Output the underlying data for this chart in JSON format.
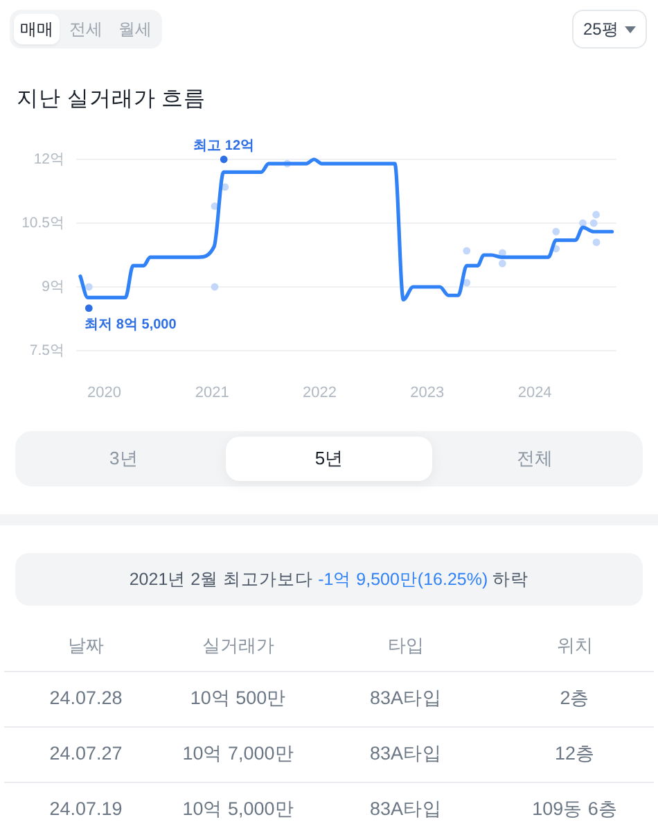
{
  "chart_data": {
    "type": "line",
    "title": "지난 실거래가 흐름",
    "xlim": [
      "2019-09-28",
      "2024-10-04"
    ],
    "xticks": [
      "2020",
      "2021",
      "2022",
      "2023",
      "2024"
    ],
    "ylim": [
      7.5,
      12
    ],
    "yticks": [
      {
        "value": 7.5,
        "label": "7.5억"
      },
      {
        "value": 9,
        "label": "9억"
      },
      {
        "value": 10.5,
        "label": "10.5억"
      },
      {
        "value": 12,
        "label": "12억"
      }
    ],
    "grid": "y",
    "marker": "circle",
    "series": [
      {
        "type": "scatter",
        "color": "#c3d7fb",
        "x": [
          "2019-11-10",
          "2021-01-10",
          "2021-01-10",
          "2021-02-14",
          "2021-09-13",
          "2023-05-15",
          "2023-05-15",
          "2023-09-13",
          "2023-09-13",
          "2024-03-13",
          "2024-03-13",
          "2024-06-12",
          "2024-07-19",
          "2024-07-27",
          "2024-07-28"
        ],
        "values": [
          9.0,
          10.9,
          9.0,
          11.35,
          11.9,
          9.85,
          9.1,
          9.8,
          9.55,
          10.3,
          9.9,
          10.5,
          10.5,
          10.7,
          10.05
        ]
      },
      {
        "type": "line",
        "color": "#3182f6",
        "marker": "none",
        "x": [
          "2019-10-12",
          "2019-11-06",
          "2020-03-13",
          "2020-04-08",
          "2020-05-14",
          "2020-06-05",
          "2020-11-16",
          "2021-01-08",
          "2021-02-09",
          "2021-06-17",
          "2021-07-12",
          "2021-11-17",
          "2021-12-13",
          "2022-01-08",
          "2022-09-13",
          "2022-10-12",
          "2022-11-14",
          "2023-02-13",
          "2023-03-14",
          "2023-04-16",
          "2023-05-15",
          "2023-06-21",
          "2023-07-12",
          "2023-08-07",
          "2023-09-09",
          "2024-01-29",
          "2024-02-16",
          "2024-03-13",
          "2024-05-18",
          "2024-06-12",
          "2024-07-19",
          "2024-09-19"
        ],
        "values": [
          9.25,
          8.75,
          8.75,
          9.5,
          9.5,
          9.7,
          9.7,
          9.95,
          11.7,
          11.7,
          11.9,
          11.9,
          12.0,
          11.9,
          11.9,
          8.7,
          9.0,
          9.0,
          8.8,
          8.8,
          9.5,
          9.5,
          9.75,
          9.75,
          9.7,
          9.7,
          9.7,
          10.1,
          10.1,
          10.4,
          10.3,
          10.3
        ]
      },
      {
        "type": "scatter",
        "color": "#2f6fe6",
        "x": [
          "2021-02-10",
          "2019-11-10"
        ],
        "values": [
          12,
          8.5
        ]
      }
    ],
    "annotations": [
      "매매",
      "전세",
      "월세",
      "25평",
      "3년",
      "5년",
      "전체",
      "2021년 2월 최고가보다",
      "-1억 9,500만(16.25%)",
      "하락",
      "날짜",
      "실거래가",
      "타입",
      "위치",
      "24.07.28",
      "10억 500만",
      "83A타입",
      "2층",
      "24.07.27",
      "10억 7,000만",
      "83A타입",
      "12층",
      "24.07.19",
      "10억 5,000만",
      "83A타입",
      "109동 6층",
      {
        "text": "최고 12억",
        "x": "2021-02-10",
        "y": 12
      },
      {
        "text": "최저 8억 5,000",
        "x": "2019-11-10",
        "y": 8.5
      }
    ]
  }
}
